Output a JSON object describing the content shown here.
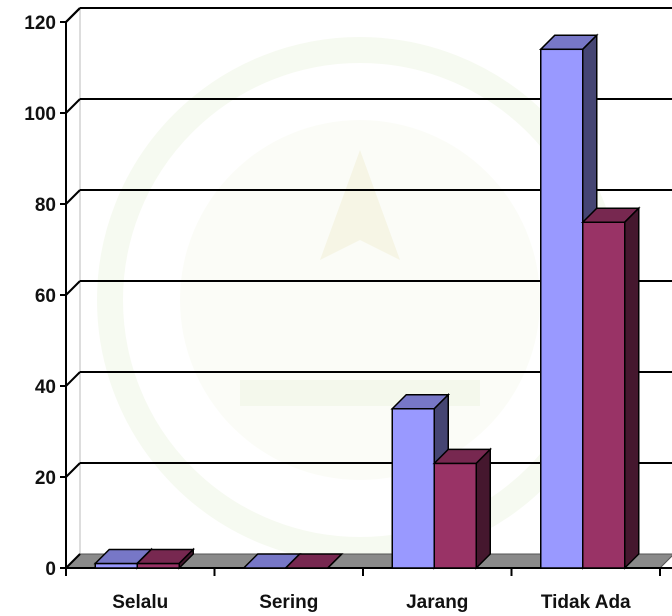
{
  "chart_data": {
    "type": "bar",
    "categories": [
      "Selalu",
      "Sering",
      "Jarang",
      "Tidak Ada"
    ],
    "series": [
      {
        "values": [
          1,
          0,
          35,
          114
        ],
        "color": "#9999ff"
      },
      {
        "values": [
          1,
          0,
          23,
          76
        ],
        "color": "#993366"
      }
    ],
    "ylim": [
      0,
      120
    ],
    "yticks": [
      0,
      20,
      40,
      60,
      80,
      100,
      120
    ],
    "ytick_labels": [
      "0",
      "20",
      "40",
      "60",
      "80",
      "100",
      "120"
    ],
    "grid": true,
    "style": "3d-clustered-column",
    "background_watermark": "green-gold emblem"
  }
}
